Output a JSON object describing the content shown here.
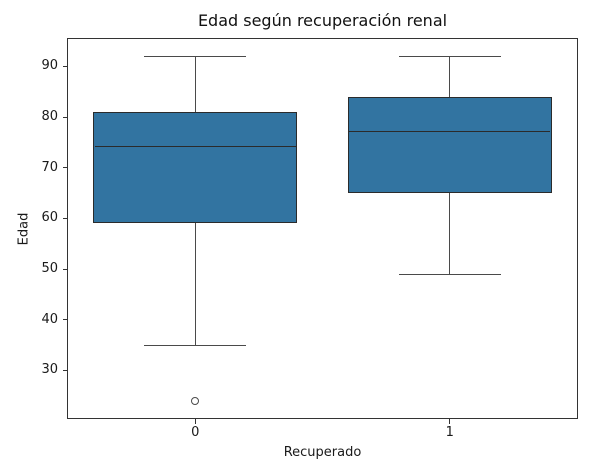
{
  "title": "Edad según recuperación renal",
  "chart_data": {
    "type": "boxplot",
    "title": "Edad según recuperación renal",
    "xlabel": "Recuperado",
    "ylabel": "Edad",
    "categories": [
      "0",
      "1"
    ],
    "yticks": [
      30,
      40,
      50,
      60,
      70,
      80,
      90
    ],
    "ylim": [
      20.6,
      95.4
    ],
    "xlim": [
      -0.5,
      1.5
    ],
    "grid": false,
    "legend": null,
    "box_width": 0.8,
    "cap_width": 0.4,
    "boxes": [
      {
        "category": "0",
        "whisker_low": 35,
        "q1": 59,
        "median": 74,
        "q3": 81,
        "whisker_high": 92,
        "outliers": [
          24
        ]
      },
      {
        "category": "1",
        "whisker_low": 49,
        "q1": 65,
        "median": 77,
        "q3": 84,
        "whisker_high": 92,
        "outliers": []
      }
    ],
    "colors": {
      "box_fill": "#3274a1",
      "box_edge": "#2b2b2b",
      "whisker": "#4a4a4a",
      "spine": "#333333",
      "tick_text": "#1a1a1a",
      "background": "#ffffff"
    }
  }
}
